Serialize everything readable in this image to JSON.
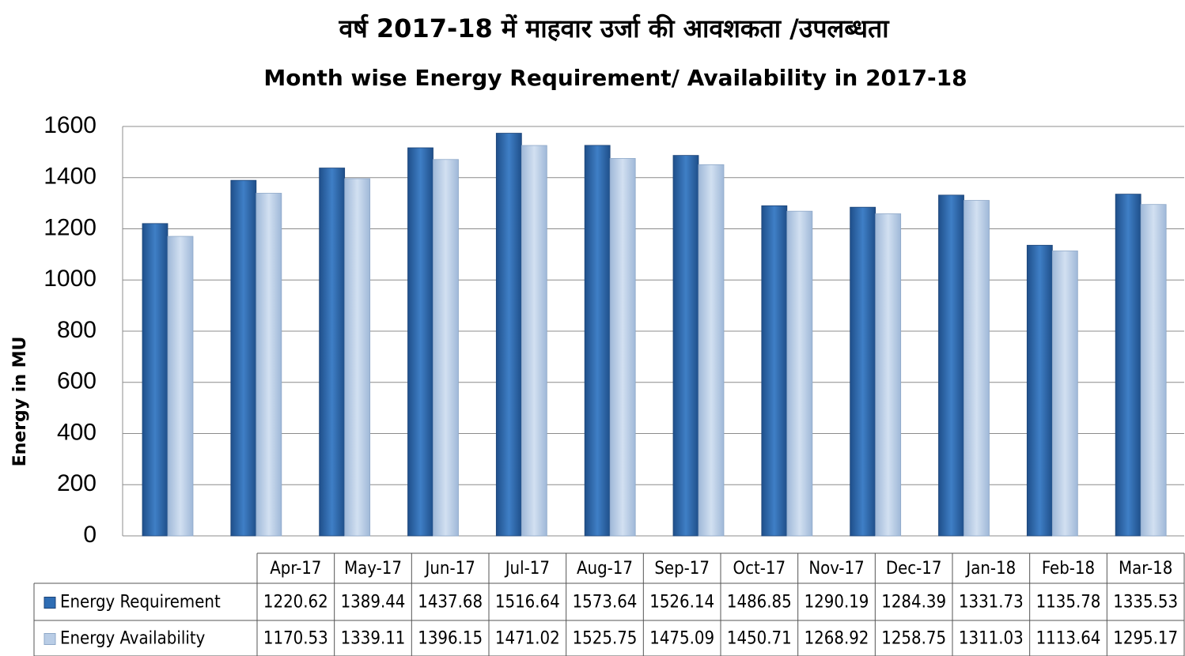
{
  "chart_data": {
    "type": "bar",
    "title": "वर्ष 2017-18 में माहवार उर्जा की आवशकता /उपलब्धता",
    "subtitle": "Month wise Energy Requirement/ Availability in 2017-18",
    "y_label": "Energy in MU",
    "categories": [
      "Apr-17",
      "May-17",
      "Jun-17",
      "Jul-17",
      "Aug-17",
      "Sep-17",
      "Oct-17",
      "Nov-17",
      "Dec-17",
      "Jan-18",
      "Feb-18",
      "Mar-18"
    ],
    "series": [
      {
        "name": "Energy Requirement",
        "color": "#2e6db4",
        "values": [
          1220.62,
          1389.44,
          1437.68,
          1516.64,
          1573.64,
          1526.14,
          1486.85,
          1290.19,
          1284.39,
          1331.73,
          1135.78,
          1335.53
        ]
      },
      {
        "name": "Energy Availability",
        "color": "#b9cde6",
        "values": [
          1170.53,
          1339.11,
          1396.15,
          1471.02,
          1525.75,
          1475.09,
          1450.71,
          1268.92,
          1258.75,
          1311.03,
          1113.64,
          1295.17
        ]
      }
    ],
    "ylim": [
      0,
      1600
    ],
    "yticks": [
      0,
      200,
      400,
      600,
      800,
      1000,
      1200,
      1400,
      1600
    ],
    "grid": true
  }
}
